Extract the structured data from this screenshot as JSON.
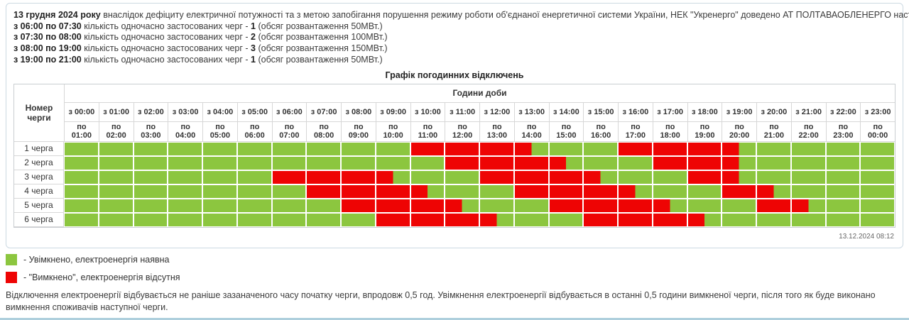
{
  "colors": {
    "on_green": "#8cc63f",
    "off_red": "#ee0404",
    "box_border": "#ccd9e2",
    "grid_border": "#d7d7d7",
    "bottom_line": "#aecfdd"
  },
  "intro_lines": [
    [
      {
        "t": "13 грудня 2024 року",
        "b": true
      },
      {
        "t": " внаслідок дефіциту електричної потужності та з метою запобігання порушення режиму роботи об'єднаної енергетичної системи України, НЕК \"Укренерго\" доведено АТ ПОЛТАВАОБЛЕНЕРГО наступні обсяги розвантаження:",
        "b": false
      }
    ],
    [
      {
        "t": "з 06:00 по 07:30",
        "b": true
      },
      {
        "t": " кількість одночасно застосованих черг - ",
        "b": false
      },
      {
        "t": "1",
        "b": true
      },
      {
        "t": " (обсяг розвантаження 50МВт.)",
        "b": false
      }
    ],
    [
      {
        "t": "з 07:30 по 08:00",
        "b": true
      },
      {
        "t": " кількість одночасно застосованих черг - ",
        "b": false
      },
      {
        "t": "2",
        "b": true
      },
      {
        "t": " (обсяг розвантаження 100МВт.)",
        "b": false
      }
    ],
    [
      {
        "t": "з 08:00 по 19:00",
        "b": true
      },
      {
        "t": " кількість одночасно застосованих черг - ",
        "b": false
      },
      {
        "t": "3",
        "b": true
      },
      {
        "t": " (обсяг розвантаження 150МВт.)",
        "b": false
      }
    ],
    [
      {
        "t": "з 19:00 по 21:00",
        "b": true
      },
      {
        "t": " кількість одночасно застосованих черг - ",
        "b": false
      },
      {
        "t": "1",
        "b": true
      },
      {
        "t": " (обсяг розвантаження 50МВт.)",
        "b": false
      }
    ]
  ],
  "table": {
    "corner_label": "Номер черги",
    "hours_header": "Години доби",
    "col_from": [
      "з 00:00",
      "з 01:00",
      "з 02:00",
      "з 03:00",
      "з 04:00",
      "з 05:00",
      "з 06:00",
      "з 07:00",
      "з 08:00",
      "з 09:00",
      "з 10:00",
      "з 11:00",
      "з 12:00",
      "з 13:00",
      "з 14:00",
      "з 15:00",
      "з 16:00",
      "з 17:00",
      "з 18:00",
      "з 19:00",
      "з 20:00",
      "з 21:00",
      "з 22:00",
      "з 23:00"
    ],
    "col_to": [
      "по 01:00",
      "по 02:00",
      "по 03:00",
      "по 04:00",
      "по 05:00",
      "по 06:00",
      "по 07:00",
      "по 08:00",
      "по 09:00",
      "по 10:00",
      "по 11:00",
      "по 12:00",
      "по 13:00",
      "по 14:00",
      "по 15:00",
      "по 16:00",
      "по 17:00",
      "по 18:00",
      "по 19:00",
      "по 20:00",
      "по 21:00",
      "по 22:00",
      "по 23:00",
      "по 00:00"
    ]
  },
  "chart_data": {
    "type": "heatmap",
    "title": "Графік погодинних відключень",
    "x_axis_label": "Години доби",
    "x_categories": [
      "00:00-01:00",
      "01:00-02:00",
      "02:00-03:00",
      "03:00-04:00",
      "04:00-05:00",
      "05:00-06:00",
      "06:00-07:00",
      "07:00-08:00",
      "08:00-09:00",
      "09:00-10:00",
      "10:00-11:00",
      "11:00-12:00",
      "12:00-13:00",
      "13:00-14:00",
      "14:00-15:00",
      "15:00-16:00",
      "16:00-17:00",
      "17:00-18:00",
      "18:00-19:00",
      "19:00-20:00",
      "20:00-21:00",
      "21:00-22:00",
      "22:00-23:00",
      "23:00-00:00"
    ],
    "resolution_hours": 0.5,
    "states": {
      "on": "Увімкнено, електроенергія наявна",
      "off": "Вимкнено, електроенергія відсутня"
    },
    "rows": [
      {
        "label": "1 черга",
        "off_intervals": [
          "10:00-13:30",
          "16:00-19:30"
        ],
        "off_slots": [
          [
            20,
            27
          ],
          [
            32,
            39
          ]
        ]
      },
      {
        "label": "2 черга",
        "off_intervals": [
          "11:00-14:30",
          "17:00-19:30"
        ],
        "off_slots": [
          [
            22,
            29
          ],
          [
            34,
            39
          ]
        ]
      },
      {
        "label": "3 черга",
        "off_intervals": [
          "06:00-09:30",
          "12:00-15:30",
          "18:00-19:30"
        ],
        "off_slots": [
          [
            12,
            19
          ],
          [
            24,
            31
          ],
          [
            36,
            39
          ]
        ]
      },
      {
        "label": "4 черга",
        "off_intervals": [
          "07:00-10:30",
          "13:00-16:30",
          "19:00-20:30"
        ],
        "off_slots": [
          [
            14,
            21
          ],
          [
            26,
            33
          ],
          [
            38,
            41
          ]
        ]
      },
      {
        "label": "5 черга",
        "off_intervals": [
          "08:00-11:30",
          "14:00-17:30",
          "20:00-21:30"
        ],
        "off_slots": [
          [
            16,
            23
          ],
          [
            28,
            35
          ],
          [
            40,
            43
          ]
        ]
      },
      {
        "label": "6 черга",
        "off_intervals": [
          "09:00-12:30",
          "15:00-18:30"
        ],
        "off_slots": [
          [
            18,
            25
          ],
          [
            30,
            37
          ]
        ]
      }
    ]
  },
  "timestamp": "13.12.2024 08:12",
  "legend": [
    {
      "state": "on",
      "label": "- Увімкнено, електроенергія наявна"
    },
    {
      "state": "off",
      "label": "- \"Вимкнено\", електроенергія відсутня"
    }
  ],
  "footer_note": "Відключення електроенергії відбувається не раніше зазаначеного часу початку черги, впродовж 0,5 год. Увімкнення електроенергії відбувається в останні 0,5 години вимкненої черги, після того як буде виконано вимкнення споживачів наступної черги."
}
